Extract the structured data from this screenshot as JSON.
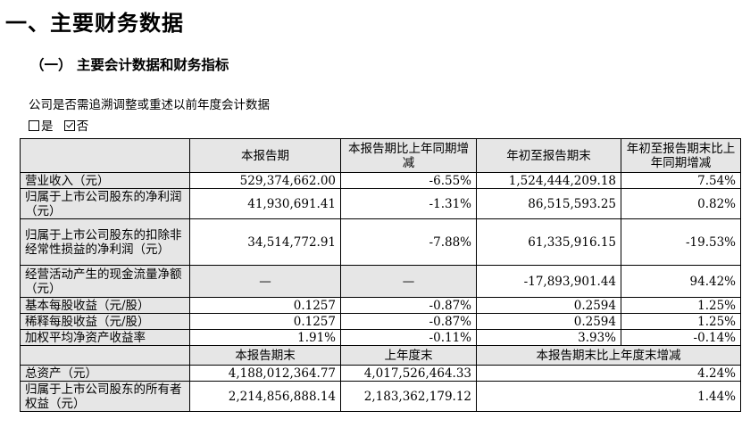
{
  "heading": "一、主要财务数据",
  "subheading": "（一） 主要会计数据和财务指标",
  "question": "公司是否需追溯调整或重述以前年度会计数据",
  "options": [
    {
      "label": "是",
      "checked": false
    },
    {
      "label": "否",
      "checked": true
    }
  ],
  "table": {
    "header1": [
      "",
      "本报告期",
      "本报告期比上年同期增减",
      "年初至报告期末",
      "年初至报告期末比上年同期增减"
    ],
    "rows": [
      {
        "label": "营业收入（元）",
        "cur": "529,374,662.00",
        "chg": "-6.55%",
        "ytd": "1,524,444,209.18",
        "ytd_chg": "7.54%"
      },
      {
        "label": "归属于上市公司股东的净利润（元）",
        "cur": "41,930,691.41",
        "chg": "-1.31%",
        "ytd": "86,515,593.25",
        "ytd_chg": "0.82%"
      },
      {
        "label": "归属于上市公司股东的扣除非经常性损益的净利润（元）",
        "cur": "34,514,772.91",
        "chg": "-7.88%",
        "ytd": "61,335,916.15",
        "ytd_chg": "-19.53%"
      },
      {
        "label": "经营活动产生的现金流量净额（元）",
        "cur": "—",
        "chg": "—",
        "ytd": "-17,893,901.44",
        "ytd_chg": "94.42%"
      },
      {
        "label": "基本每股收益（元/股）",
        "cur": "0.1257",
        "chg": "-0.87%",
        "ytd": "0.2594",
        "ytd_chg": "1.25%"
      },
      {
        "label": "稀释每股收益（元/股）",
        "cur": "0.1257",
        "chg": "-0.87%",
        "ytd": "0.2594",
        "ytd_chg": "1.25%"
      },
      {
        "label": "加权平均净资产收益率",
        "cur": "1.91%",
        "chg": "-0.11%",
        "ytd": "3.93%",
        "ytd_chg": "-0.14%"
      }
    ],
    "header2": [
      "",
      "本报告期末",
      "上年度末",
      "本报告期末比上年度末增减"
    ],
    "rows2": [
      {
        "label": "总资产（元）",
        "end": "4,188,012,364.77",
        "prev": "4,017,526,464.33",
        "chg": "4.24%"
      },
      {
        "label": "归属于上市公司股东的所有者权益（元）",
        "end": "2,214,856,888.14",
        "prev": "2,183,362,179.12",
        "chg": "1.44%"
      }
    ]
  }
}
